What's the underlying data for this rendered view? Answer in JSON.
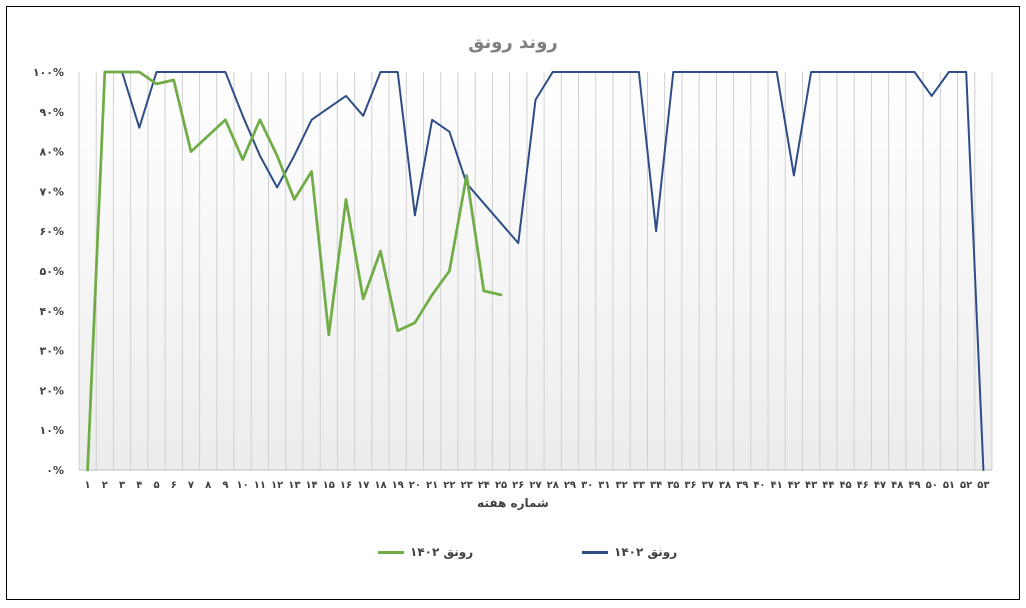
{
  "chart_data": {
    "type": "line",
    "title": "روند رونق",
    "xlabel": "شماره هفته",
    "ylabel": "",
    "categories": [
      "۱",
      "۲",
      "۳",
      "۴",
      "۵",
      "۶",
      "۷",
      "۸",
      "۹",
      "۱۰",
      "۱۱",
      "۱۲",
      "۱۳",
      "۱۴",
      "۱۵",
      "۱۶",
      "۱۷",
      "۱۸",
      "۱۹",
      "۲۰",
      "۲۱",
      "۲۲",
      "۲۳",
      "۲۴",
      "۲۵",
      "۲۶",
      "۲۷",
      "۲۸",
      "۲۹",
      "۳۰",
      "۳۱",
      "۳۲",
      "۳۳",
      "۳۴",
      "۳۵",
      "۳۶",
      "۳۷",
      "۳۸",
      "۳۹",
      "۴۰",
      "۴۱",
      "۴۲",
      "۴۳",
      "۴۴",
      "۴۵",
      "۴۶",
      "۴۷",
      "۴۸",
      "۴۹",
      "۵۰",
      "۵۱",
      "۵۲",
      "۵۳"
    ],
    "yticks": [
      "۰%",
      "۱۰%",
      "۲۰%",
      "۳۰%",
      "۴۰%",
      "۵۰%",
      "۶۰%",
      "۷۰%",
      "۸۰%",
      "۹۰%",
      "۱۰۰%"
    ],
    "ylim": [
      0,
      100
    ],
    "grid": "vertical",
    "legend_position": "bottom",
    "series": [
      {
        "name": "رونق ۱۴۰۲",
        "color": "#2e4d87",
        "values": [
          0,
          100,
          100,
          86,
          100,
          100,
          100,
          100,
          100,
          89,
          79,
          71,
          79,
          88,
          91,
          94,
          89,
          100,
          100,
          64,
          88,
          85,
          72,
          67,
          62,
          57,
          93,
          100,
          100,
          100,
          100,
          100,
          100,
          60,
          100,
          100,
          100,
          100,
          100,
          100,
          100,
          74,
          100,
          100,
          100,
          100,
          100,
          100,
          100,
          94,
          100,
          100,
          0
        ]
      },
      {
        "name": "رونق ۱۴۰۲",
        "color": "#70ad47",
        "values": [
          0,
          100,
          100,
          100,
          97,
          98,
          80,
          84,
          88,
          78,
          88,
          79,
          68,
          75,
          34,
          68,
          43,
          55,
          35,
          37,
          44,
          50,
          74,
          45,
          44,
          null,
          null,
          null,
          null,
          null,
          null,
          null,
          null,
          null,
          null,
          null,
          null,
          null,
          null,
          null,
          null,
          null,
          null,
          null,
          null,
          null,
          null,
          null,
          null,
          null,
          null,
          null,
          null
        ]
      }
    ]
  }
}
